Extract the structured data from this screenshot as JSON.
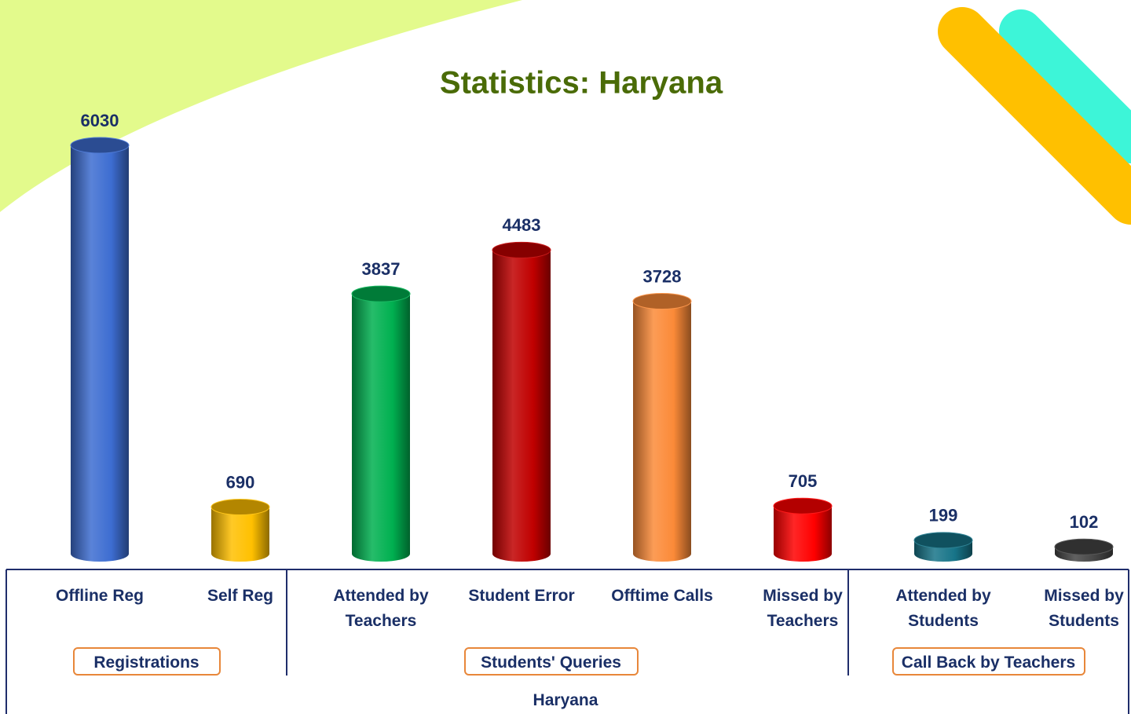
{
  "chart_data": {
    "type": "bar",
    "title": "Statistics: Haryana",
    "categories": [
      "Offline Reg",
      "Self Reg",
      "Attended by Teachers",
      "Student Error",
      "Offtime Calls",
      "Missed by Teachers",
      "Attended by Students",
      "Missed by Students"
    ],
    "values": [
      6030,
      690,
      3837,
      4483,
      3728,
      705,
      199,
      102
    ],
    "colors": [
      "#3d6dd1",
      "#ffc000",
      "#00b050",
      "#c00000",
      "#fb8a38",
      "#ff0000",
      "#177488",
      "#454545"
    ],
    "groups": [
      {
        "name": "Registrations",
        "categories": [
          "Offline Reg",
          "Self Reg"
        ]
      },
      {
        "name": "Students' Queries",
        "categories": [
          "Attended by Teachers",
          "Student Error",
          "Offtime Calls",
          "Missed by Teachers"
        ]
      },
      {
        "name": "Call Back by Teachers",
        "categories": [
          "Attended by Students",
          "Missed by Students"
        ]
      }
    ],
    "x_label": "Haryana"
  }
}
